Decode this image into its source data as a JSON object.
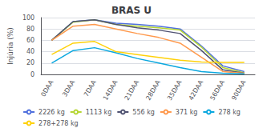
{
  "chart_data": {
    "type": "line",
    "title": "BRAS U",
    "ylabel": "Injúria (%)",
    "categories": [
      "0DAA",
      "3DAA",
      "7DAA",
      "14DAA",
      "21DAA",
      "28DAA",
      "35DAA",
      "42DAA",
      "56DAA",
      "90DAA"
    ],
    "series": [
      {
        "name": "2226 kg",
        "values": [
          60,
          93,
          96,
          90,
          88,
          85,
          80,
          50,
          15,
          5
        ]
      },
      {
        "name": "1113 kg",
        "values": [
          60,
          92,
          96,
          88,
          85,
          82,
          78,
          48,
          12,
          3
        ]
      },
      {
        "name": "556 kg",
        "values": [
          60,
          93,
          96,
          88,
          82,
          78,
          72,
          42,
          8,
          2
        ]
      },
      {
        "name": "371 kg",
        "values": [
          60,
          85,
          88,
          80,
          72,
          65,
          55,
          30,
          5,
          2
        ]
      },
      {
        "name": "278 kg",
        "values": [
          20,
          42,
          47,
          38,
          28,
          20,
          12,
          5,
          2,
          1
        ]
      },
      {
        "name": "278+278 kg",
        "values": [
          35,
          55,
          58,
          40,
          35,
          30,
          25,
          22,
          21,
          21
        ]
      }
    ],
    "ylim": [
      0,
      100
    ],
    "yticks": [
      0,
      20,
      40,
      60,
      80,
      100
    ],
    "grid": true,
    "legend": "bottom"
  }
}
